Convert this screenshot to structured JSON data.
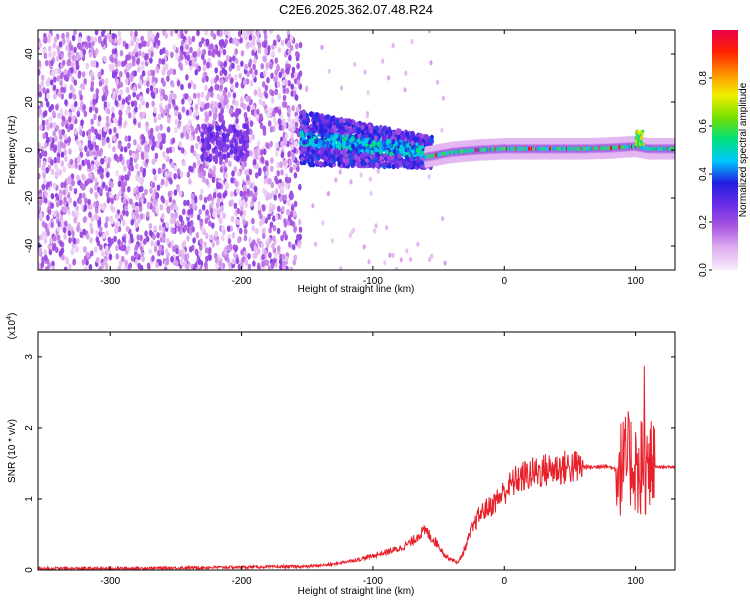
{
  "title": "C2E6.2025.362.07.48.R24",
  "chart_data": [
    {
      "type": "heatmap",
      "xlabel": "Height of straight line (km)",
      "ylabel": "Frequency (Hz)",
      "xlim": [
        -355,
        130
      ],
      "ylim": [
        -50,
        50
      ],
      "xticks": [
        -300,
        -200,
        -100,
        0,
        100
      ],
      "yticks": [
        -40,
        -20,
        0,
        20,
        40
      ],
      "xtick_labels": [
        "-300",
        "-200",
        "-100",
        "0",
        "100"
      ],
      "ytick_labels": [
        "-40",
        "-20",
        "0",
        "20",
        "40"
      ],
      "signal_track": {
        "x": [
          -60,
          -40,
          -20,
          0,
          20,
          40,
          60,
          80,
          100,
          110,
          130
        ],
        "freq": [
          -3,
          -1,
          0,
          0.5,
          0.5,
          0.5,
          0.5,
          0.8,
          1.5,
          0.5,
          0.5
        ]
      },
      "colorbar": {
        "label": "Normalized spectral amplitude",
        "range": [
          0.0,
          1.0
        ],
        "ticks": [
          0.0,
          0.2,
          0.4,
          0.6,
          0.8
        ],
        "tick_labels": [
          "0.0",
          "0.2",
          "0.4",
          "0.6",
          "0.8"
        ],
        "colors": [
          "#f7ecfb",
          "#e0b0f0",
          "#a855e0",
          "#6a2ce8",
          "#1f1fe0",
          "#00c8ff",
          "#00e07a",
          "#78e000",
          "#f0f000",
          "#ff9000",
          "#ff2000",
          "#e8004a"
        ]
      }
    },
    {
      "type": "line",
      "xlabel": "Height of straight line (km)",
      "ylabel": "SNR (10 * v/v)",
      "y_multiplier": "(x10",
      "y_multiplier_exp": "4",
      "y_multiplier_close": ")",
      "xlim": [
        -355,
        130
      ],
      "ylim": [
        0,
        3.35
      ],
      "xticks": [
        -300,
        -200,
        -100,
        0,
        100
      ],
      "yticks": [
        0,
        1,
        2,
        3
      ],
      "xtick_labels": [
        "-300",
        "-200",
        "-100",
        "0",
        "100"
      ],
      "ytick_labels": [
        "0",
        "1",
        "2",
        "3"
      ],
      "series": [
        {
          "color": "#e8202a",
          "x": [
            -355,
            -300,
            -250,
            -200,
            -150,
            -130,
            -120,
            -110,
            -100,
            -90,
            -80,
            -70,
            -65,
            -60,
            -55,
            -50,
            -45,
            -40,
            -35,
            -30,
            -25,
            -20,
            -15,
            -10,
            -5,
            0,
            5,
            10,
            20,
            30,
            40,
            50,
            60,
            70,
            75,
            80,
            85,
            90,
            95,
            100,
            103,
            105,
            108,
            110,
            112,
            115,
            120,
            130
          ],
          "y": [
            0.02,
            0.02,
            0.03,
            0.04,
            0.05,
            0.08,
            0.12,
            0.15,
            0.2,
            0.25,
            0.3,
            0.4,
            0.5,
            0.55,
            0.45,
            0.35,
            0.2,
            0.15,
            0.1,
            0.3,
            0.55,
            0.75,
            0.85,
            0.9,
            1.0,
            1.1,
            1.2,
            1.28,
            1.35,
            1.4,
            1.43,
            1.45,
            1.45,
            1.45,
            1.47,
            1.45,
            1.42,
            1.45,
            1.55,
            1.5,
            1.3,
            1.6,
            1.4,
            1.35,
            1.45,
            1.45,
            1.45,
            1.45
          ]
        }
      ]
    }
  ]
}
